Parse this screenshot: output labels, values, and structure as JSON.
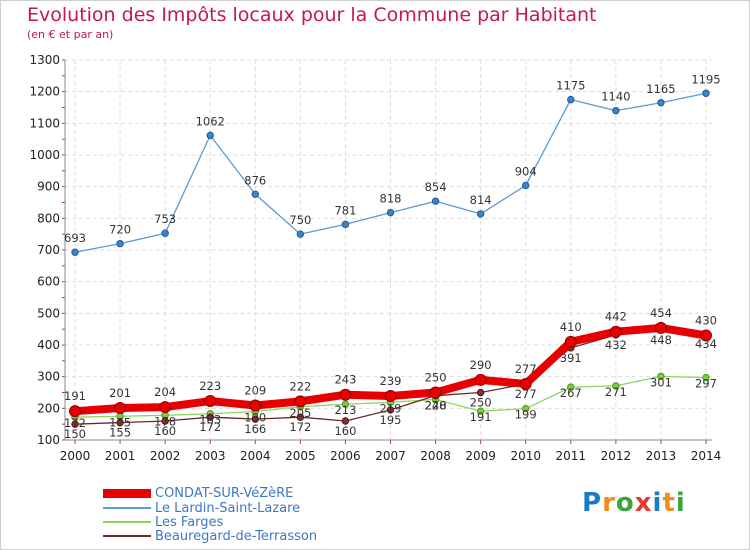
{
  "title": "Evolution des Impôts locaux pour la Commune par Habitant",
  "subtitle": "(en € et par an)",
  "logo": {
    "text": "Proxiti",
    "colors": [
      "#1a7dc4",
      "#f28c1e",
      "#3aa53a",
      "#e33b2e",
      "#1a7dc4",
      "#f28c1e",
      "#3aa53a"
    ]
  },
  "chart_data": {
    "type": "line",
    "x": [
      "2000",
      "2001",
      "2002",
      "2003",
      "2004",
      "2005",
      "2006",
      "2007",
      "2008",
      "2009",
      "2010",
      "2011",
      "2012",
      "2013",
      "2014"
    ],
    "ylim": [
      100,
      1300
    ],
    "yticks": [
      100,
      200,
      300,
      400,
      500,
      600,
      700,
      800,
      900,
      1000,
      1100,
      1200,
      1300
    ],
    "grid": true,
    "legend": "bottom-left",
    "series": [
      {
        "name": "Le Lardin-Saint-Lazare",
        "color": "#5b9bd5",
        "values": [
          693,
          720,
          753,
          1062,
          876,
          750,
          781,
          818,
          854,
          814,
          904,
          1175,
          1140,
          1165,
          1195
        ]
      },
      {
        "name": "Les Farges",
        "color": "#8fd45e",
        "values": [
          172,
          175,
          178,
          183,
          190,
          205,
          213,
          219,
          228,
          191,
          199,
          267,
          271,
          301,
          297
        ]
      },
      {
        "name": "Beauregard-de-Terrasson",
        "color": "#6b2a2a",
        "values": [
          150,
          155,
          160,
          172,
          166,
          172,
          160,
          195,
          240,
          250,
          277,
          391,
          432,
          448,
          434
        ]
      },
      {
        "name": "CONDAT-SUR-VéZèRE",
        "color": "#e80000",
        "values": [
          191,
          201,
          204,
          223,
          209,
          222,
          243,
          239,
          250,
          290,
          277,
          410,
          442,
          454,
          430
        ]
      }
    ],
    "labels": {
      "Le Lardin-Saint-Lazare": [
        "693",
        "720",
        "753",
        "1062",
        "876",
        "750",
        "781",
        "818",
        "854",
        "814",
        "904",
        "1175",
        "1140",
        "1165",
        "1195"
      ],
      "Les Farges": [
        "172",
        "175",
        "178",
        "183",
        "190",
        "205",
        "213",
        "219",
        "228",
        "191",
        "199",
        "267",
        "271",
        "301",
        "297"
      ],
      "Beauregard-de-Terrasson": [
        "150",
        "155",
        "160",
        "172",
        "166",
        "172",
        "160",
        "195",
        "240",
        "250",
        "277",
        "391",
        "432",
        "448",
        "434"
      ],
      "CONDAT-SUR-VéZèRE": [
        "191",
        "201",
        "204",
        "223",
        "209",
        "222",
        "243",
        "239",
        "250",
        "290",
        "277",
        "410",
        "442",
        "454",
        "430"
      ]
    }
  }
}
